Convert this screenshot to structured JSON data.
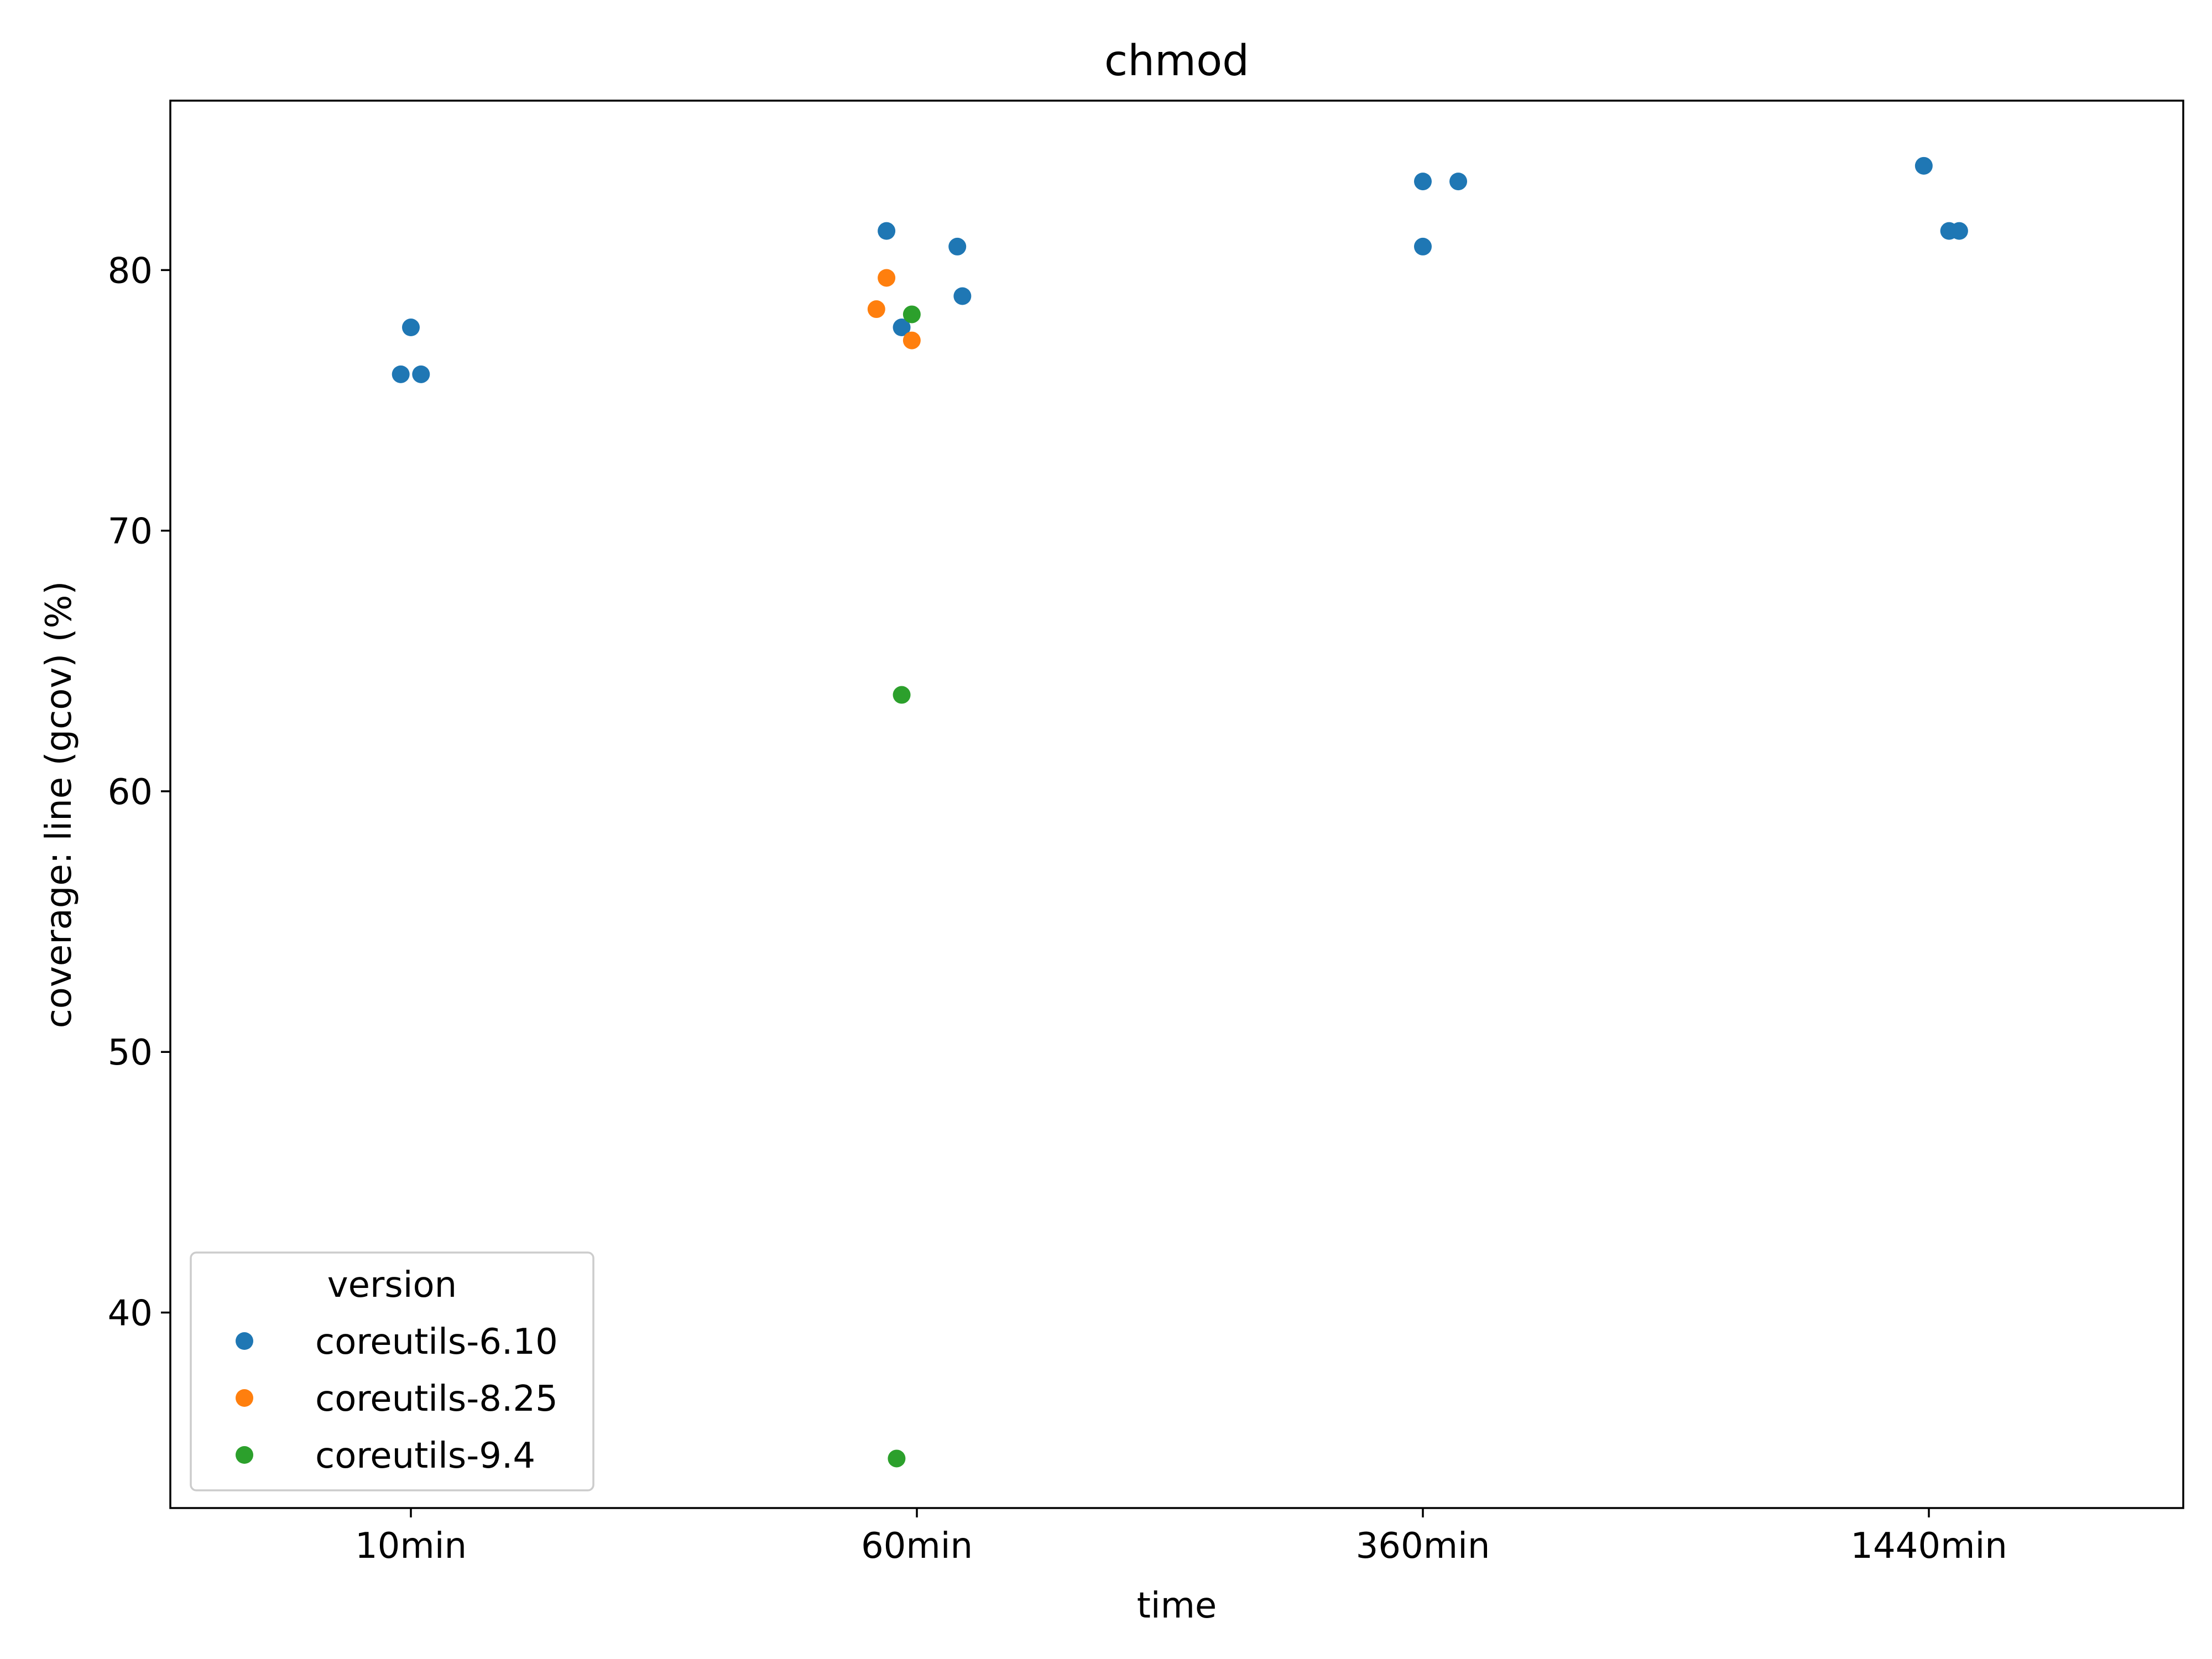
{
  "chart_data": {
    "type": "scatter",
    "title": "chmod",
    "xlabel": "time",
    "ylabel": "coverage: line (gcov) (%)",
    "categories": [
      "10min",
      "60min",
      "360min",
      "1440min"
    ],
    "ylim": [
      32.5,
      86.5
    ],
    "yticks": [
      40,
      50,
      60,
      70,
      80
    ],
    "grid": false,
    "legend": {
      "title": "version",
      "placement": "lower-left"
    },
    "series": [
      {
        "name": "coreutils-6.10",
        "color": "#1f77b4",
        "points": [
          {
            "x": "10min",
            "jitter": -0.02,
            "y": 76.0
          },
          {
            "x": "10min",
            "jitter": 0.02,
            "y": 76.0
          },
          {
            "x": "10min",
            "jitter": 0.0,
            "y": 77.8
          },
          {
            "x": "60min",
            "jitter": -0.06,
            "y": 81.5
          },
          {
            "x": "60min",
            "jitter": 0.08,
            "y": 80.9
          },
          {
            "x": "60min",
            "jitter": -0.03,
            "y": 77.8
          },
          {
            "x": "60min",
            "jitter": 0.09,
            "y": 79.0
          },
          {
            "x": "360min",
            "jitter": 0.0,
            "y": 83.4
          },
          {
            "x": "360min",
            "jitter": 0.07,
            "y": 83.4
          },
          {
            "x": "360min",
            "jitter": 0.0,
            "y": 80.9
          },
          {
            "x": "1440min",
            "jitter": -0.01,
            "y": 84.0
          },
          {
            "x": "1440min",
            "jitter": 0.04,
            "y": 81.5
          },
          {
            "x": "1440min",
            "jitter": 0.06,
            "y": 81.5
          }
        ]
      },
      {
        "name": "coreutils-8.25",
        "color": "#ff7f0e",
        "points": [
          {
            "x": "60min",
            "jitter": -0.08,
            "y": 78.5
          },
          {
            "x": "60min",
            "jitter": -0.06,
            "y": 79.7
          },
          {
            "x": "60min",
            "jitter": -0.01,
            "y": 77.3
          }
        ]
      },
      {
        "name": "coreutils-9.4",
        "color": "#2ca02c",
        "points": [
          {
            "x": "60min",
            "jitter": -0.01,
            "y": 78.3
          },
          {
            "x": "60min",
            "jitter": -0.03,
            "y": 63.7
          },
          {
            "x": "60min",
            "jitter": -0.04,
            "y": 34.4
          }
        ]
      }
    ]
  }
}
